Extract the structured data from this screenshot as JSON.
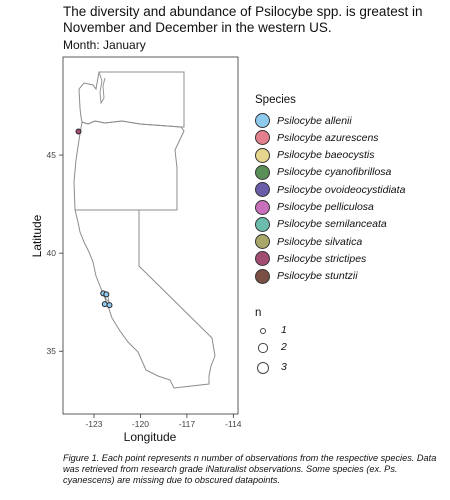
{
  "title": "The diversity and abundance of Psilocybe spp. is greatest in November and December in the western US.",
  "subtitle": "Month: January",
  "caption": "Figure 1. Each point represents n number of observations from the respective species. Data was retrieved from research grade iNaturalist observations. Some species (ex. Ps. cyanescens) are missing due to obscured datapoints.",
  "legend": {
    "species_title": "Species",
    "size_title": "n"
  },
  "chart_data": {
    "type": "scatter",
    "xlabel": "Longitude",
    "ylabel": "Latitude",
    "xlim": [
      -125,
      -113.7
    ],
    "ylim": [
      31.8,
      50
    ],
    "x_ticks": [
      -123,
      -120,
      -117,
      -114
    ],
    "x_tick_labels": [
      "-123",
      "-120",
      "-117",
      "-114"
    ],
    "y_ticks": [
      35,
      40,
      45
    ],
    "y_tick_labels": [
      "35",
      "40",
      "45"
    ],
    "grid": false,
    "legend_position": "right",
    "species": [
      {
        "name": "Psilocybe allenii",
        "color": "#8ec9ee"
      },
      {
        "name": "Psilocybe azurescens",
        "color": "#e3808e"
      },
      {
        "name": "Psilocybe baeocystis",
        "color": "#e6d58c"
      },
      {
        "name": "Psilocybe cyanofibrillosa",
        "color": "#5a8f58"
      },
      {
        "name": "Psilocybe ovoideocystidiata",
        "color": "#6a5ca8"
      },
      {
        "name": "Psilocybe pelliculosa",
        "color": "#c870bb"
      },
      {
        "name": "Psilocybe semilanceata",
        "color": "#6bbcac"
      },
      {
        "name": "Psilocybe silvatica",
        "color": "#a9a66a"
      },
      {
        "name": "Psilocybe strictipes",
        "color": "#a24e72"
      },
      {
        "name": "Psilocybe stuntzii",
        "color": "#7b5044"
      }
    ],
    "sizes": [
      {
        "label": "1",
        "n": 1
      },
      {
        "label": "2",
        "n": 2
      },
      {
        "label": "3",
        "n": 3
      }
    ],
    "points": [
      {
        "lon": -124.0,
        "lat": 46.2,
        "species": "Psilocybe strictipes",
        "n": 1
      },
      {
        "lon": -122.4,
        "lat": 37.95,
        "species": "Psilocybe allenii",
        "n": 1
      },
      {
        "lon": -122.2,
        "lat": 37.9,
        "species": "Psilocybe allenii",
        "n": 1
      },
      {
        "lon": -122.3,
        "lat": 37.4,
        "species": "Psilocybe allenii",
        "n": 1
      },
      {
        "lon": -122.0,
        "lat": 37.35,
        "species": "Psilocybe allenii",
        "n": 1
      }
    ]
  }
}
